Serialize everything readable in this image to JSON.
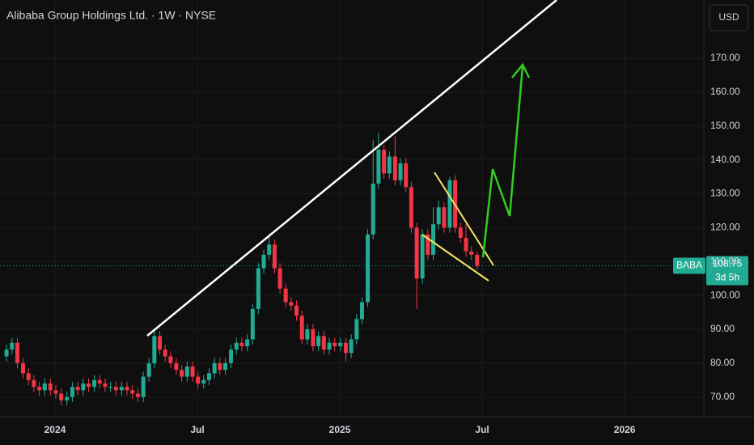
{
  "chart_data": {
    "type": "candlestick",
    "title": "Alibaba Group Holdings Ltd. · 1W · NYSE",
    "currency": "USD",
    "ticker": "BABA",
    "last_price": 108.75,
    "countdown": "3d 5h",
    "up_color": "#22ab94",
    "down_color": "#f23645",
    "grid": true,
    "xlim": [
      2023.807,
      2026.278
    ],
    "ylim": [
      63,
      187.2
    ],
    "xticks": [
      {
        "value": 2024,
        "label": "2024"
      },
      {
        "value": 2024.5,
        "label": "Jul"
      },
      {
        "value": 2025,
        "label": "2025"
      },
      {
        "value": 2025.5,
        "label": "Jul"
      },
      {
        "value": 2026,
        "label": "2026"
      }
    ],
    "yticks": [
      {
        "value": 70,
        "label": "70.00"
      },
      {
        "value": 80,
        "label": "80.00"
      },
      {
        "value": 90,
        "label": "90.00"
      },
      {
        "value": 100,
        "label": "100.00"
      },
      {
        "value": 110,
        "label": "110.00"
      },
      {
        "value": 120,
        "label": "120.00"
      },
      {
        "value": 130,
        "label": "130.00"
      },
      {
        "value": 140,
        "label": "140.00"
      },
      {
        "value": 150,
        "label": "150.00"
      },
      {
        "value": 160,
        "label": "160.00"
      },
      {
        "value": 170,
        "label": "170.00"
      }
    ],
    "series": [
      {
        "name": "BABA",
        "x": [
          2023.83,
          2023.849,
          2023.868,
          2023.888,
          2023.907,
          2023.926,
          2023.945,
          2023.964,
          2023.984,
          2024.003,
          2024.022,
          2024.042,
          2024.061,
          2024.08,
          2024.099,
          2024.118,
          2024.138,
          2024.157,
          2024.176,
          2024.195,
          2024.214,
          2024.234,
          2024.253,
          2024.272,
          2024.291,
          2024.31,
          2024.33,
          2024.349,
          2024.368,
          2024.387,
          2024.406,
          2024.426,
          2024.445,
          2024.464,
          2024.483,
          2024.502,
          2024.522,
          2024.541,
          2024.56,
          2024.579,
          2024.598,
          2024.618,
          2024.637,
          2024.656,
          2024.675,
          2024.694,
          2024.714,
          2024.733,
          2024.752,
          2024.771,
          2024.79,
          2024.81,
          2024.829,
          2024.848,
          2024.867,
          2024.886,
          2024.906,
          2024.925,
          2024.944,
          2024.963,
          2024.982,
          2025.002,
          2025.021,
          2025.04,
          2025.059,
          2025.078,
          2025.098,
          2025.117,
          2025.136,
          2025.155,
          2025.174,
          2025.194,
          2025.213,
          2025.232,
          2025.251,
          2025.27,
          2025.29,
          2025.309,
          2025.328,
          2025.347,
          2025.366,
          2025.386,
          2025.405,
          2025.424,
          2025.443,
          2025.462,
          2025.482
        ],
        "open": [
          82,
          84,
          86,
          80,
          77,
          75,
          73,
          72,
          74,
          72,
          71,
          69,
          70,
          73,
          72,
          74,
          73,
          75,
          74,
          73,
          73,
          72,
          73,
          72,
          71,
          70,
          76,
          80,
          88,
          84,
          82,
          80,
          78,
          76,
          79,
          76,
          74,
          75,
          77,
          80,
          78,
          80,
          84,
          86,
          85,
          87,
          96,
          108,
          112,
          115,
          108,
          102,
          98,
          97,
          94,
          87,
          90,
          85,
          88,
          84,
          86,
          85,
          86,
          83,
          87,
          93,
          98,
          118,
          133,
          143,
          136,
          141,
          134,
          139,
          132,
          120,
          105,
          118,
          112,
          121,
          126,
          120,
          134,
          120,
          117,
          113,
          112
        ],
        "high": [
          85.5,
          87.5,
          87.5,
          81.5,
          78.5,
          76.5,
          74.5,
          75.5,
          75.5,
          73.5,
          72.5,
          71.5,
          74.5,
          74.5,
          75.5,
          75.5,
          76.5,
          76.5,
          75.5,
          74.5,
          74.5,
          74.5,
          74.5,
          73.5,
          72.5,
          77.5,
          81.5,
          89.5,
          89.5,
          85.5,
          83.5,
          81.5,
          79.5,
          80.5,
          80.5,
          77.5,
          76.5,
          78.5,
          81.5,
          81.5,
          81.5,
          85.5,
          87.5,
          87.5,
          88.5,
          97.5,
          109.5,
          113.5,
          118,
          116.5,
          109.5,
          103.5,
          99.5,
          98.5,
          95.5,
          91.5,
          91.5,
          89.5,
          89.5,
          87.5,
          87.5,
          87.5,
          87.5,
          88.5,
          94.5,
          99.5,
          119.5,
          146,
          148,
          144.5,
          142.5,
          147,
          140.5,
          140.5,
          133.5,
          121.5,
          119.5,
          119.5,
          126,
          128,
          127.5,
          135,
          135.5,
          121.5,
          121,
          114.5,
          113
        ],
        "low": [
          80.5,
          82.5,
          78.5,
          75.5,
          73.5,
          71.5,
          70.5,
          70.5,
          70.5,
          69.5,
          67.5,
          67.5,
          68.5,
          70.5,
          70.5,
          71.5,
          71.5,
          72.5,
          71.5,
          71.5,
          70.5,
          70.5,
          70.5,
          69.5,
          68.5,
          68.5,
          74.5,
          78.5,
          82.5,
          80.5,
          78.5,
          76.5,
          74.5,
          74.5,
          74.5,
          72.5,
          72.5,
          73.5,
          75.5,
          76.5,
          76.5,
          78.5,
          82.5,
          83.5,
          83.5,
          85.5,
          94.5,
          106.5,
          110.5,
          106.5,
          100.5,
          96.5,
          95.5,
          92.5,
          85.5,
          85.5,
          83.5,
          83.5,
          82.5,
          82.5,
          83.5,
          83.5,
          80.5,
          81.5,
          85.5,
          91.5,
          96.5,
          116.5,
          131.5,
          134.5,
          134.5,
          132.5,
          132.5,
          130.5,
          118.5,
          96,
          103.5,
          110.5,
          110.5,
          119.5,
          118.5,
          118.5,
          118.5,
          115.5,
          111.5,
          110.5,
          107.5
        ],
        "close": [
          84,
          86,
          80,
          77,
          75,
          73,
          72,
          74,
          72,
          71,
          69,
          70,
          73,
          72,
          74,
          73,
          75,
          74,
          73,
          73,
          72,
          73,
          72,
          71,
          70,
          76,
          80,
          88,
          84,
          82,
          80,
          78,
          76,
          79,
          76,
          74,
          75,
          77,
          80,
          78,
          80,
          84,
          86,
          85,
          87,
          96,
          108,
          112,
          115,
          108,
          102,
          98,
          97,
          94,
          87,
          90,
          85,
          88,
          84,
          86,
          85,
          86,
          83,
          87,
          93,
          98,
          118,
          133,
          143,
          136,
          141,
          134,
          139,
          132,
          120,
          105,
          118,
          112,
          121,
          126,
          120,
          134,
          120,
          117,
          113,
          112,
          108.75
        ]
      }
    ]
  }
}
